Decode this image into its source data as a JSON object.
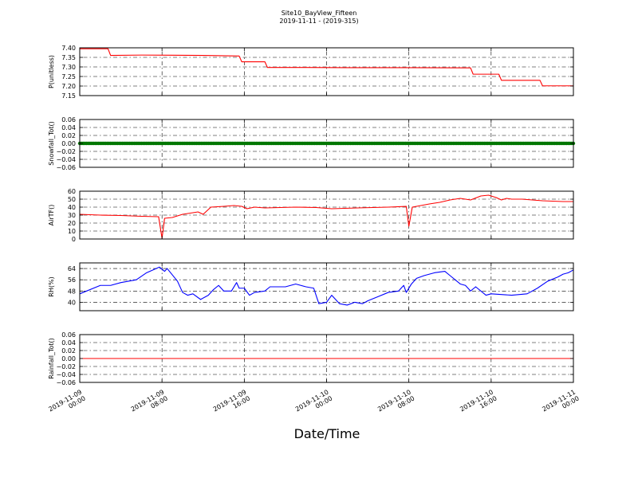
{
  "figure": {
    "title_line1": "Site10_BayView_Fifteen",
    "title_line2": "2019-11-11 - (2019-315)",
    "xlabel": "Date/Time"
  },
  "chart_data": {
    "type": "line",
    "x_range": [
      "2019-11-09 00:00",
      "2019-11-11 00:00"
    ],
    "x_tick_values": [
      "2019-11-09 00:00",
      "2019-11-09 08:00",
      "2019-11-09 16:00",
      "2019-11-10 00:00",
      "2019-11-10 08:00",
      "2019-11-10 16:00",
      "2019-11-11 00:00"
    ],
    "x_tick_labels": [
      [
        "2019-11-09",
        "00:00"
      ],
      [
        "2019-11-09",
        "08:00"
      ],
      [
        "2019-11-09",
        "16:00"
      ],
      [
        "2019-11-10",
        "00:00"
      ],
      [
        "2019-11-10",
        "08:00"
      ],
      [
        "2019-11-10",
        "16:00"
      ],
      [
        "2019-11-11",
        "00:00"
      ]
    ],
    "grid": true,
    "panels": [
      {
        "ylabel": "P(unitless)",
        "ylim": [
          7.15,
          7.4
        ],
        "yticks": [
          7.15,
          7.2,
          7.25,
          7.3,
          7.35,
          7.4
        ],
        "ytick_labels": [
          "7.15",
          "7.20",
          "7.25",
          "7.30",
          "7.35",
          "7.40"
        ],
        "series": [
          {
            "color": "#ff0000",
            "style": "line",
            "points": [
              [
                "2019-11-09 00:00",
                7.395
              ],
              [
                "2019-11-09 02:45",
                7.395
              ],
              [
                "2019-11-09 03:00",
                7.36
              ],
              [
                "2019-11-09 06:00",
                7.362
              ],
              [
                "2019-11-09 09:00",
                7.361
              ],
              [
                "2019-11-09 12:00",
                7.36
              ],
              [
                "2019-11-09 15:30",
                7.357
              ],
              [
                "2019-11-09 15:45",
                7.327
              ],
              [
                "2019-11-09 18:00",
                7.327
              ],
              [
                "2019-11-09 18:15",
                7.297
              ],
              [
                "2019-11-09 22:00",
                7.297
              ],
              [
                "2019-11-10 02:00",
                7.296
              ],
              [
                "2019-11-10 08:00",
                7.296
              ],
              [
                "2019-11-10 14:00",
                7.295
              ],
              [
                "2019-11-10 14:15",
                7.262
              ],
              [
                "2019-11-10 16:45",
                7.262
              ],
              [
                "2019-11-10 17:00",
                7.23
              ],
              [
                "2019-11-10 20:45",
                7.23
              ],
              [
                "2019-11-10 21:00",
                7.201
              ],
              [
                "2019-11-11 00:00",
                7.201
              ]
            ]
          }
        ]
      },
      {
        "ylabel": "Snowfall_Tot()",
        "ylim": [
          -0.06,
          0.06
        ],
        "yticks": [
          -0.06,
          -0.04,
          -0.02,
          0.0,
          0.02,
          0.04,
          0.06
        ],
        "ytick_labels": [
          "−0.06",
          "−0.04",
          "−0.02",
          "0.00",
          "0.02",
          "0.04",
          "0.06"
        ],
        "series": [
          {
            "color": "#007700",
            "style": "markers",
            "interval_minutes": 10,
            "constant_value": 0.0
          }
        ]
      },
      {
        "ylabel": "AirTF()",
        "ylim": [
          0,
          60
        ],
        "yticks": [
          0,
          10,
          20,
          30,
          40,
          50,
          60
        ],
        "ytick_labels": [
          "0",
          "10",
          "20",
          "30",
          "40",
          "50",
          "60"
        ],
        "series": [
          {
            "color": "#ff0000",
            "style": "line",
            "points": [
              [
                "2019-11-09 00:00",
                31
              ],
              [
                "2019-11-09 02:00",
                30
              ],
              [
                "2019-11-09 04:00",
                29.5
              ],
              [
                "2019-11-09 06:00",
                28.5
              ],
              [
                "2019-11-09 07:40",
                28
              ],
              [
                "2019-11-09 08:00",
                1
              ],
              [
                "2019-11-09 08:15",
                26
              ],
              [
                "2019-11-09 09:00",
                27
              ],
              [
                "2019-11-09 10:00",
                31
              ],
              [
                "2019-11-09 11:30",
                34
              ],
              [
                "2019-11-09 12:00",
                31
              ],
              [
                "2019-11-09 12:45",
                40
              ],
              [
                "2019-11-09 14:00",
                41
              ],
              [
                "2019-11-09 15:00",
                42
              ],
              [
                "2019-11-09 15:45",
                41
              ],
              [
                "2019-11-09 16:15",
                38
              ],
              [
                "2019-11-09 17:00",
                40
              ],
              [
                "2019-11-09 18:00",
                39
              ],
              [
                "2019-11-09 21:00",
                40
              ],
              [
                "2019-11-09 23:00",
                39.5
              ],
              [
                "2019-11-10 00:30",
                38
              ],
              [
                "2019-11-10 03:00",
                39
              ],
              [
                "2019-11-10 06:00",
                40
              ],
              [
                "2019-11-10 07:45",
                41
              ],
              [
                "2019-11-10 08:00",
                16
              ],
              [
                "2019-11-10 08:20",
                40
              ],
              [
                "2019-11-10 10:00",
                44
              ],
              [
                "2019-11-10 11:00",
                46
              ],
              [
                "2019-11-10 12:00",
                49
              ],
              [
                "2019-11-10 13:00",
                51
              ],
              [
                "2019-11-10 14:00",
                49
              ],
              [
                "2019-11-10 15:00",
                54
              ],
              [
                "2019-11-10 15:45",
                55
              ],
              [
                "2019-11-10 16:30",
                52
              ],
              [
                "2019-11-10 17:00",
                49
              ],
              [
                "2019-11-10 17:30",
                51
              ],
              [
                "2019-11-10 18:00",
                50
              ],
              [
                "2019-11-10 19:00",
                50
              ],
              [
                "2019-11-10 21:00",
                48
              ],
              [
                "2019-11-10 23:00",
                47
              ],
              [
                "2019-11-11 00:00",
                47
              ]
            ]
          }
        ]
      },
      {
        "ylabel": "RH(%)",
        "ylim": [
          34,
          68
        ],
        "yticks": [
          40,
          48,
          56,
          64
        ],
        "ytick_labels": [
          "40",
          "48",
          "56",
          "64"
        ],
        "series": [
          {
            "color": "#0000ff",
            "style": "line",
            "points": [
              [
                "2019-11-09 00:00",
                46
              ],
              [
                "2019-11-09 02:00",
                52
              ],
              [
                "2019-11-09 03:00",
                52
              ],
              [
                "2019-11-09 04:00",
                54
              ],
              [
                "2019-11-09 05:30",
                56
              ],
              [
                "2019-11-09 06:30",
                61
              ],
              [
                "2019-11-09 07:45",
                65
              ],
              [
                "2019-11-09 08:15",
                62
              ],
              [
                "2019-11-09 08:30",
                64
              ],
              [
                "2019-11-09 09:30",
                55
              ],
              [
                "2019-11-09 10:00",
                47
              ],
              [
                "2019-11-09 10:30",
                45
              ],
              [
                "2019-11-09 11:00",
                46
              ],
              [
                "2019-11-09 11:45",
                42
              ],
              [
                "2019-11-09 12:30",
                45
              ],
              [
                "2019-11-09 13:00",
                49
              ],
              [
                "2019-11-09 13:30",
                52
              ],
              [
                "2019-11-09 14:00",
                48
              ],
              [
                "2019-11-09 14:45",
                48
              ],
              [
                "2019-11-09 15:15",
                54
              ],
              [
                "2019-11-09 15:30",
                50
              ],
              [
                "2019-11-09 16:00",
                50
              ],
              [
                "2019-11-09 16:30",
                45
              ],
              [
                "2019-11-09 17:00",
                47
              ],
              [
                "2019-11-09 18:00",
                48
              ],
              [
                "2019-11-09 18:30",
                51
              ],
              [
                "2019-11-09 20:00",
                51
              ],
              [
                "2019-11-09 21:00",
                53
              ],
              [
                "2019-11-09 22:00",
                51
              ],
              [
                "2019-11-09 22:45",
                50
              ],
              [
                "2019-11-09 23:15",
                39
              ],
              [
                "2019-11-10 00:00",
                40
              ],
              [
                "2019-11-10 00:30",
                45
              ],
              [
                "2019-11-10 01:15",
                39
              ],
              [
                "2019-11-10 02:00",
                38
              ],
              [
                "2019-11-10 02:45",
                40
              ],
              [
                "2019-11-10 03:30",
                39
              ],
              [
                "2019-11-10 04:00",
                41
              ],
              [
                "2019-11-10 05:00",
                44
              ],
              [
                "2019-11-10 06:00",
                47
              ],
              [
                "2019-11-10 07:00",
                48
              ],
              [
                "2019-11-10 07:30",
                52
              ],
              [
                "2019-11-10 07:45",
                47
              ],
              [
                "2019-11-10 08:15",
                53
              ],
              [
                "2019-11-10 08:45",
                57
              ],
              [
                "2019-11-10 09:30",
                59
              ],
              [
                "2019-11-10 10:30",
                61
              ],
              [
                "2019-11-10 11:30",
                62
              ],
              [
                "2019-11-10 12:00",
                59
              ],
              [
                "2019-11-10 13:00",
                53
              ],
              [
                "2019-11-10 13:30",
                52
              ],
              [
                "2019-11-10 14:00",
                48
              ],
              [
                "2019-11-10 14:30",
                51
              ],
              [
                "2019-11-10 15:30",
                45
              ],
              [
                "2019-11-10 16:00",
                46
              ],
              [
                "2019-11-10 18:00",
                45
              ],
              [
                "2019-11-10 19:30",
                46
              ],
              [
                "2019-11-10 20:30",
                50
              ],
              [
                "2019-11-10 21:30",
                55
              ],
              [
                "2019-11-10 22:30",
                58
              ],
              [
                "2019-11-10 23:00",
                60
              ],
              [
                "2019-11-10 23:30",
                61
              ],
              [
                "2019-11-11 00:00",
                63
              ]
            ]
          }
        ]
      },
      {
        "ylabel": "Rainfall_Tot()",
        "ylim": [
          -0.06,
          0.06
        ],
        "yticks": [
          -0.06,
          -0.04,
          -0.02,
          0.0,
          0.02,
          0.04,
          0.06
        ],
        "ytick_labels": [
          "−0.06",
          "−0.04",
          "−0.02",
          "0.00",
          "0.02",
          "0.04",
          "0.06"
        ],
        "series": [
          {
            "color": "#ff0000",
            "style": "line",
            "points": [
              [
                "2019-11-09 00:00",
                0.0
              ],
              [
                "2019-11-11 00:00",
                0.0
              ]
            ]
          }
        ]
      }
    ]
  }
}
